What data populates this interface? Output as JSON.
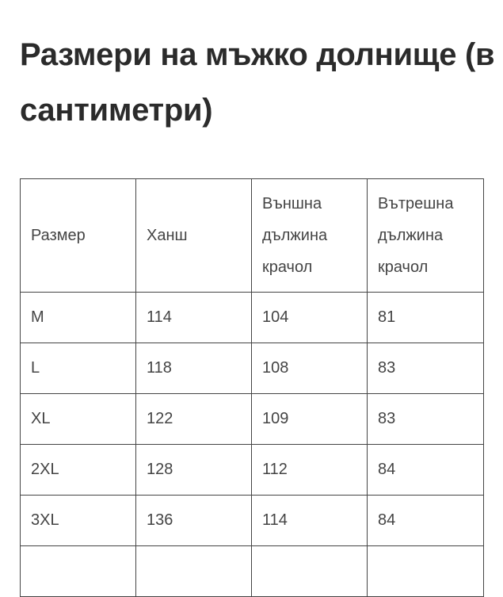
{
  "title": "Размери на мъжко долнище (в сантиметри)",
  "table": {
    "headers": [
      "Размер",
      "Ханш",
      "Външна дължина крачол",
      "Вътрешна дължина крачол"
    ],
    "rows": [
      [
        "M",
        "114",
        "104",
        "81"
      ],
      [
        "L",
        "118",
        "108",
        "83"
      ],
      [
        "XL",
        "122",
        "109",
        "83"
      ],
      [
        "2XL",
        "128",
        "112",
        "84"
      ],
      [
        "3XL",
        "136",
        "114",
        "84"
      ],
      [
        "",
        "",
        "",
        ""
      ]
    ]
  }
}
